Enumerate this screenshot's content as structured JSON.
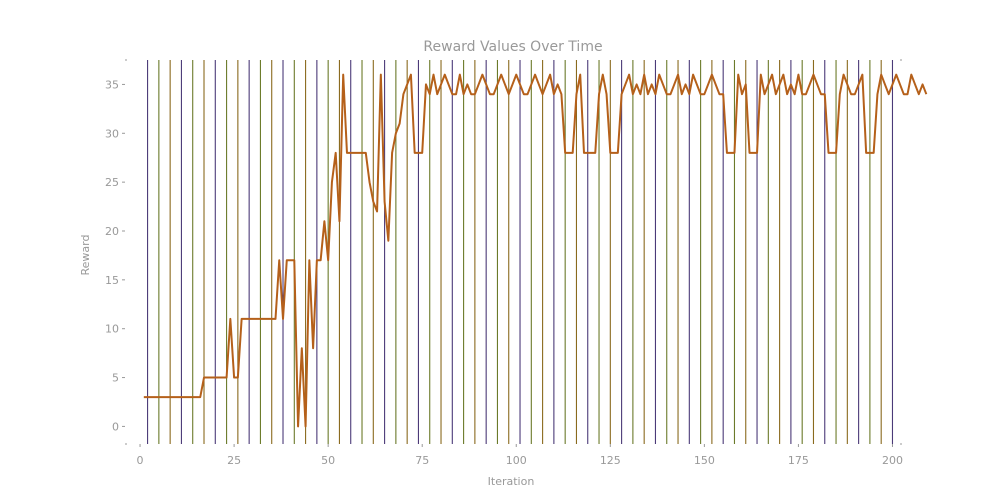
{
  "chart_data": {
    "type": "line",
    "title": "Reward Values Over Time",
    "xlabel": "Iteration",
    "ylabel": "Reward",
    "xlim": [
      -4,
      202
    ],
    "ylim": [
      -1.8,
      37.5
    ],
    "xticks": [
      0,
      25,
      50,
      75,
      100,
      125,
      150,
      175,
      200
    ],
    "yticks": [
      0,
      5,
      10,
      15,
      20,
      25,
      30,
      35
    ],
    "grid": false,
    "legend": "none",
    "vertical_markers": {
      "interval": 3,
      "start": 2,
      "end": 200,
      "colors": [
        "#4b3a78",
        "#6b7a2a",
        "#8a6a1e"
      ]
    },
    "series": [
      {
        "color": "#b5601a",
        "x_start": 1,
        "values": [
          3,
          3,
          3,
          3,
          3,
          3,
          3,
          3,
          3,
          3,
          3,
          3,
          3,
          3,
          3,
          3,
          5,
          5,
          5,
          5,
          5,
          5,
          5,
          11,
          5,
          5,
          11,
          11,
          11,
          11,
          11,
          11,
          11,
          11,
          11,
          11,
          17,
          11,
          17,
          17,
          17,
          0,
          8,
          0,
          17,
          8,
          17,
          17,
          21,
          17,
          25,
          28,
          21,
          36,
          28,
          28,
          28,
          28,
          28,
          28,
          25,
          23,
          22,
          36,
          23,
          19,
          28,
          30,
          31,
          34,
          35,
          36,
          28,
          28,
          28,
          35,
          34,
          36,
          34,
          35,
          36,
          35,
          34,
          34,
          36,
          34,
          35,
          34,
          34,
          35,
          36,
          35,
          34,
          34,
          35,
          36,
          35,
          34,
          35,
          36,
          35,
          34,
          34,
          35,
          36,
          35,
          34,
          35,
          36,
          34,
          35,
          34,
          28,
          28,
          28,
          34,
          36,
          28,
          28,
          28,
          28,
          34,
          36,
          34,
          28,
          28,
          28,
          34,
          35,
          36,
          34,
          35,
          34,
          36,
          34,
          35,
          34,
          36,
          35,
          34,
          34,
          35,
          36,
          34,
          35,
          34,
          36,
          35,
          34,
          34,
          35,
          36,
          35,
          34,
          34,
          28,
          28,
          28,
          36,
          34,
          35,
          28,
          28,
          28,
          36,
          34,
          35,
          36,
          34,
          35,
          36,
          34,
          35,
          34,
          36,
          34,
          34,
          35,
          36,
          35,
          34,
          34,
          28,
          28,
          28,
          34,
          36,
          35,
          34,
          34,
          35,
          36,
          28,
          28,
          28,
          34,
          36,
          35,
          34,
          35,
          36,
          35,
          34,
          34,
          36,
          35,
          34,
          35,
          34
        ]
      }
    ]
  }
}
